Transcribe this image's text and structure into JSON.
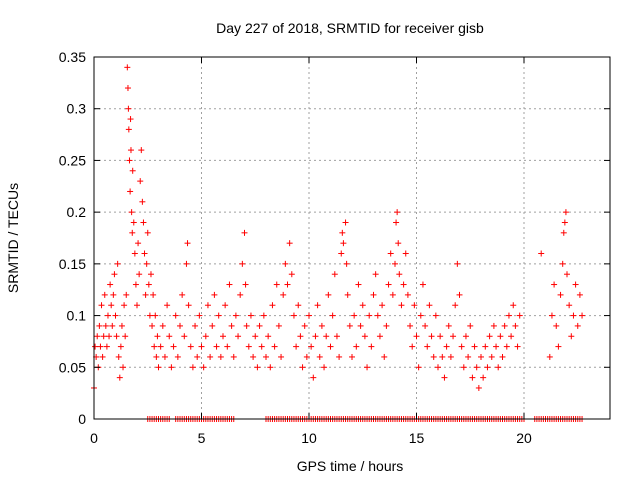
{
  "chart_data": {
    "type": "scatter",
    "title": "Day 227 of 2018, SRMTID for receiver gisb",
    "xlabel": "GPS time / hours",
    "ylabel": "SRMTID / TECUs",
    "xlim": [
      0,
      24
    ],
    "ylim": [
      0,
      0.35
    ],
    "xticks": [
      0,
      5,
      10,
      15,
      20
    ],
    "xtick_labels": [
      "0",
      "5",
      "10",
      "15",
      "20"
    ],
    "yticks": [
      0,
      0.05,
      0.1,
      0.15,
      0.2,
      0.25,
      0.3,
      0.35
    ],
    "ytick_labels": [
      "0",
      "0.05",
      "0.1",
      "0.15",
      "0.2",
      "0.25",
      "0.3",
      "0.35"
    ],
    "grid": true,
    "marker": "+",
    "color": "#ff0000",
    "series": [
      {
        "points": [
          [
            0.0,
            0.03
          ],
          [
            0.05,
            0.07
          ],
          [
            0.1,
            0.06
          ],
          [
            0.15,
            0.08
          ],
          [
            0.2,
            0.05
          ],
          [
            0.25,
            0.09
          ],
          [
            0.3,
            0.07
          ],
          [
            0.35,
            0.11
          ],
          [
            0.4,
            0.06
          ],
          [
            0.45,
            0.08
          ],
          [
            0.5,
            0.12
          ],
          [
            0.55,
            0.09
          ],
          [
            0.6,
            0.07
          ],
          [
            0.65,
            0.1
          ],
          [
            0.7,
            0.08
          ],
          [
            0.75,
            0.13
          ],
          [
            0.8,
            0.11
          ],
          [
            0.85,
            0.09
          ],
          [
            0.9,
            0.12
          ],
          [
            0.95,
            0.14
          ],
          [
            1.0,
            0.1
          ],
          [
            1.05,
            0.08
          ],
          [
            1.1,
            0.15
          ],
          [
            1.15,
            0.06
          ],
          [
            1.2,
            0.04
          ],
          [
            1.25,
            0.07
          ],
          [
            1.3,
            0.09
          ],
          [
            1.35,
            0.05
          ],
          [
            1.4,
            0.11
          ],
          [
            1.45,
            0.08
          ],
          [
            1.5,
            0.12
          ],
          [
            1.55,
            0.34
          ],
          [
            1.58,
            0.32
          ],
          [
            1.6,
            0.3
          ],
          [
            1.62,
            0.28
          ],
          [
            1.65,
            0.25
          ],
          [
            1.68,
            0.22
          ],
          [
            1.7,
            0.29
          ],
          [
            1.72,
            0.26
          ],
          [
            1.75,
            0.2
          ],
          [
            1.78,
            0.18
          ],
          [
            1.8,
            0.24
          ],
          [
            1.85,
            0.19
          ],
          [
            1.9,
            0.16
          ],
          [
            1.95,
            0.13
          ],
          [
            2.0,
            0.11
          ],
          [
            2.05,
            0.17
          ],
          [
            2.1,
            0.14
          ],
          [
            2.15,
            0.23
          ],
          [
            2.2,
            0.26
          ],
          [
            2.25,
            0.21
          ],
          [
            2.3,
            0.19
          ],
          [
            2.35,
            0.16
          ],
          [
            2.4,
            0.12
          ],
          [
            2.45,
            0.15
          ],
          [
            2.5,
            0.18
          ],
          [
            2.55,
            0.13
          ],
          [
            2.6,
            0.1
          ],
          [
            2.65,
            0.14
          ],
          [
            2.7,
            0.09
          ],
          [
            2.75,
            0.12
          ],
          [
            2.8,
            0.07
          ],
          [
            2.85,
            0.1
          ],
          [
            2.9,
            0.06
          ],
          [
            2.95,
            0.08
          ],
          [
            3.0,
            0.05
          ],
          [
            3.1,
            0.07
          ],
          [
            3.2,
            0.09
          ],
          [
            3.3,
            0.06
          ],
          [
            3.4,
            0.11
          ],
          [
            3.5,
            0.08
          ],
          [
            3.6,
            0.05
          ],
          [
            3.7,
            0.07
          ],
          [
            3.8,
            0.1
          ],
          [
            3.9,
            0.06
          ],
          [
            4.0,
            0.09
          ],
          [
            4.1,
            0.12
          ],
          [
            4.2,
            0.08
          ],
          [
            4.3,
            0.15
          ],
          [
            4.35,
            0.17
          ],
          [
            4.4,
            0.11
          ],
          [
            4.5,
            0.07
          ],
          [
            4.6,
            0.05
          ],
          [
            4.7,
            0.09
          ],
          [
            4.8,
            0.06
          ],
          [
            4.9,
            0.1
          ],
          [
            5.0,
            0.07
          ],
          [
            5.1,
            0.05
          ],
          [
            5.2,
            0.08
          ],
          [
            5.3,
            0.11
          ],
          [
            5.4,
            0.06
          ],
          [
            5.5,
            0.09
          ],
          [
            5.6,
            0.12
          ],
          [
            5.7,
            0.07
          ],
          [
            5.8,
            0.1
          ],
          [
            5.9,
            0.06
          ],
          [
            6.0,
            0.08
          ],
          [
            6.1,
            0.11
          ],
          [
            6.2,
            0.07
          ],
          [
            6.3,
            0.13
          ],
          [
            6.4,
            0.09
          ],
          [
            6.5,
            0.06
          ],
          [
            6.6,
            0.1
          ],
          [
            6.7,
            0.08
          ],
          [
            6.8,
            0.12
          ],
          [
            6.9,
            0.15
          ],
          [
            7.0,
            0.18
          ],
          [
            7.05,
            0.13
          ],
          [
            7.1,
            0.09
          ],
          [
            7.2,
            0.07
          ],
          [
            7.3,
            0.1
          ],
          [
            7.4,
            0.06
          ],
          [
            7.5,
            0.08
          ],
          [
            7.6,
            0.05
          ],
          [
            7.7,
            0.09
          ],
          [
            7.8,
            0.07
          ],
          [
            7.9,
            0.1
          ],
          [
            8.0,
            0.06
          ],
          [
            8.1,
            0.08
          ],
          [
            8.2,
            0.05
          ],
          [
            8.3,
            0.11
          ],
          [
            8.4,
            0.07
          ],
          [
            8.5,
            0.13
          ],
          [
            8.6,
            0.09
          ],
          [
            8.7,
            0.06
          ],
          [
            8.8,
            0.12
          ],
          [
            8.9,
            0.15
          ],
          [
            9.0,
            0.13
          ],
          [
            9.1,
            0.17
          ],
          [
            9.2,
            0.14
          ],
          [
            9.3,
            0.1
          ],
          [
            9.4,
            0.07
          ],
          [
            9.5,
            0.11
          ],
          [
            9.6,
            0.08
          ],
          [
            9.7,
            0.05
          ],
          [
            9.8,
            0.09
          ],
          [
            9.9,
            0.06
          ],
          [
            10.0,
            0.1
          ],
          [
            10.1,
            0.07
          ],
          [
            10.2,
            0.04
          ],
          [
            10.3,
            0.08
          ],
          [
            10.4,
            0.11
          ],
          [
            10.5,
            0.06
          ],
          [
            10.6,
            0.09
          ],
          [
            10.7,
            0.05
          ],
          [
            10.8,
            0.08
          ],
          [
            10.9,
            0.12
          ],
          [
            11.0,
            0.07
          ],
          [
            11.1,
            0.1
          ],
          [
            11.2,
            0.14
          ],
          [
            11.3,
            0.08
          ],
          [
            11.4,
            0.06
          ],
          [
            11.5,
            0.16
          ],
          [
            11.55,
            0.18
          ],
          [
            11.6,
            0.17
          ],
          [
            11.7,
            0.19
          ],
          [
            11.75,
            0.15
          ],
          [
            11.8,
            0.12
          ],
          [
            11.9,
            0.09
          ],
          [
            12.0,
            0.06
          ],
          [
            12.1,
            0.1
          ],
          [
            12.2,
            0.07
          ],
          [
            12.3,
            0.13
          ],
          [
            12.4,
            0.09
          ],
          [
            12.5,
            0.11
          ],
          [
            12.6,
            0.08
          ],
          [
            12.7,
            0.05
          ],
          [
            12.8,
            0.1
          ],
          [
            12.9,
            0.07
          ],
          [
            13.0,
            0.12
          ],
          [
            13.1,
            0.14
          ],
          [
            13.2,
            0.1
          ],
          [
            13.3,
            0.08
          ],
          [
            13.4,
            0.11
          ],
          [
            13.5,
            0.06
          ],
          [
            13.6,
            0.09
          ],
          [
            13.7,
            0.13
          ],
          [
            13.8,
            0.16
          ],
          [
            13.9,
            0.12
          ],
          [
            14.0,
            0.15
          ],
          [
            14.05,
            0.19
          ],
          [
            14.1,
            0.2
          ],
          [
            14.15,
            0.17
          ],
          [
            14.2,
            0.14
          ],
          [
            14.3,
            0.11
          ],
          [
            14.4,
            0.13
          ],
          [
            14.5,
            0.16
          ],
          [
            14.6,
            0.12
          ],
          [
            14.7,
            0.09
          ],
          [
            14.8,
            0.07
          ],
          [
            14.9,
            0.11
          ],
          [
            15.0,
            0.08
          ],
          [
            15.1,
            0.05
          ],
          [
            15.2,
            0.1
          ],
          [
            15.3,
            0.13
          ],
          [
            15.4,
            0.09
          ],
          [
            15.5,
            0.07
          ],
          [
            15.6,
            0.11
          ],
          [
            15.7,
            0.08
          ],
          [
            15.8,
            0.06
          ],
          [
            15.9,
            0.1
          ],
          [
            16.0,
            0.05
          ],
          [
            16.1,
            0.08
          ],
          [
            16.2,
            0.06
          ],
          [
            16.3,
            0.04
          ],
          [
            16.4,
            0.07
          ],
          [
            16.5,
            0.09
          ],
          [
            16.6,
            0.06
          ],
          [
            16.7,
            0.08
          ],
          [
            16.8,
            0.11
          ],
          [
            16.9,
            0.15
          ],
          [
            17.0,
            0.12
          ],
          [
            17.1,
            0.07
          ],
          [
            17.2,
            0.05
          ],
          [
            17.3,
            0.08
          ],
          [
            17.4,
            0.06
          ],
          [
            17.5,
            0.09
          ],
          [
            17.6,
            0.04
          ],
          [
            17.7,
            0.07
          ],
          [
            17.8,
            0.05
          ],
          [
            17.9,
            0.03
          ],
          [
            18.0,
            0.06
          ],
          [
            18.1,
            0.04
          ],
          [
            18.2,
            0.07
          ],
          [
            18.3,
            0.05
          ],
          [
            18.4,
            0.08
          ],
          [
            18.5,
            0.06
          ],
          [
            18.6,
            0.09
          ],
          [
            18.7,
            0.07
          ],
          [
            18.8,
            0.05
          ],
          [
            18.9,
            0.08
          ],
          [
            19.0,
            0.06
          ],
          [
            19.1,
            0.09
          ],
          [
            19.2,
            0.07
          ],
          [
            19.3,
            0.1
          ],
          [
            19.4,
            0.08
          ],
          [
            19.5,
            0.11
          ],
          [
            19.6,
            0.09
          ],
          [
            19.7,
            0.07
          ],
          [
            19.8,
            0.1
          ],
          [
            20.8,
            0.16
          ],
          [
            21.2,
            0.06
          ],
          [
            21.3,
            0.1
          ],
          [
            21.4,
            0.13
          ],
          [
            21.5,
            0.09
          ],
          [
            21.6,
            0.07
          ],
          [
            21.7,
            0.12
          ],
          [
            21.8,
            0.15
          ],
          [
            21.85,
            0.18
          ],
          [
            21.9,
            0.19
          ],
          [
            21.95,
            0.2
          ],
          [
            22.0,
            0.14
          ],
          [
            22.1,
            0.11
          ],
          [
            22.2,
            0.08
          ],
          [
            22.3,
            0.1
          ],
          [
            22.4,
            0.13
          ],
          [
            22.5,
            0.09
          ],
          [
            22.6,
            0.12
          ],
          [
            22.7,
            0.1
          ]
        ],
        "zero_ranges": [
          [
            2.5,
            3.5
          ],
          [
            3.8,
            6.5
          ],
          [
            8.0,
            20.0
          ],
          [
            20.5,
            22.7
          ]
        ]
      }
    ]
  }
}
